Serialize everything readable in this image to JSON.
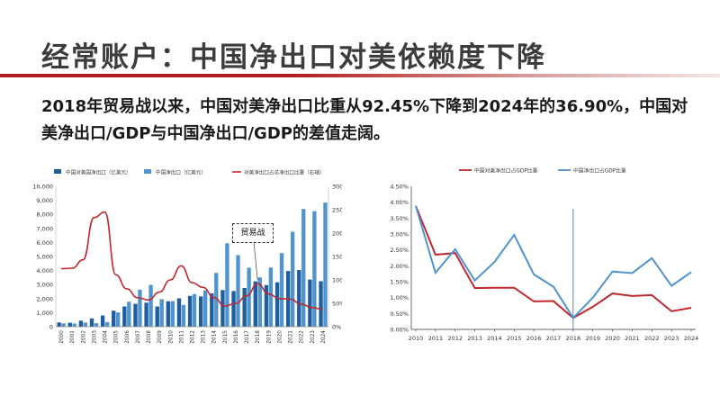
{
  "title": "经常账户：中国净出口对美依赖度下降",
  "subtitle": "2018年贸易战以来，中国对美净出口比重从92.45%下降到2024年的36.90%，中国对美净出口/GDP与中国净出口/GDP的差值走阔。",
  "colors": {
    "dark_blue": "#1f5d9e",
    "light_blue": "#4f93cf",
    "red": "#c1272d",
    "accent": "#b11b1b"
  },
  "chart_data": [
    {
      "type": "bar",
      "categories": [
        "2000",
        "2001",
        "2002",
        "2003",
        "2004",
        "2005",
        "2006",
        "2007",
        "2008",
        "2009",
        "2010",
        "2011",
        "2012",
        "2013",
        "2014",
        "2015",
        "2016",
        "2017",
        "2018",
        "2019",
        "2020",
        "2021",
        "2022",
        "2023",
        "2024"
      ],
      "series": [
        {
          "name": "中国对美国净出口（亿美元）",
          "type": "bar",
          "axis": "left",
          "values": [
            300,
            280,
            430,
            590,
            800,
            1140,
            1440,
            1630,
            1710,
            1440,
            1810,
            2020,
            2190,
            2160,
            2370,
            2610,
            2540,
            2760,
            3230,
            2960,
            3160,
            3970,
            4040,
            3360,
            3240
          ]
        },
        {
          "name": "中国净出口（亿美元）",
          "type": "bar",
          "axis": "left",
          "values": [
            240,
            230,
            300,
            250,
            330,
            1020,
            1780,
            2640,
            2980,
            1960,
            1820,
            1550,
            2320,
            2590,
            3830,
            5940,
            5100,
            4200,
            3510,
            4210,
            5240,
            6760,
            8380,
            8230,
            8840
          ]
        },
        {
          "name": "对美净出口占总净出口比重（右轴）",
          "type": "line",
          "axis": "right",
          "values": [
            124,
            125,
            143,
            233,
            245,
            111,
            81,
            62,
            57,
            74,
            100,
            130,
            94,
            84,
            62,
            44,
            50,
            66,
            92,
            70,
            60,
            59,
            48,
            41,
            37
          ]
        }
      ],
      "ylim_left": [
        0,
        10000
      ],
      "yticks_left": [
        "0",
        "1,000",
        "2,000",
        "3,000",
        "4,000",
        "5,000",
        "6,000",
        "7,000",
        "8,000",
        "9,000",
        "10,000"
      ],
      "ylim_right": [
        0,
        300
      ],
      "yticks_right": [
        "0%",
        "50%",
        "100%",
        "150%",
        "200%",
        "250%",
        "300%"
      ],
      "annotation": "贸易战"
    },
    {
      "type": "line",
      "categories": [
        "2010",
        "2011",
        "2012",
        "2013",
        "2014",
        "2015",
        "2016",
        "2017",
        "2018",
        "2019",
        "2020",
        "2021",
        "2022",
        "2023",
        "2024"
      ],
      "series": [
        {
          "name": "中国对美净出口占GDP比重",
          "values": [
            3.88,
            2.35,
            2.4,
            1.3,
            1.31,
            1.31,
            0.88,
            0.89,
            0.36,
            0.71,
            1.13,
            1.05,
            1.08,
            0.57,
            0.68
          ]
        },
        {
          "name": "中国净出口占GDP比重",
          "values": [
            3.88,
            1.78,
            2.52,
            1.54,
            2.12,
            2.97,
            1.73,
            1.34,
            0.36,
            1.0,
            1.82,
            1.77,
            2.24,
            1.37,
            1.8
          ]
        }
      ],
      "ylim": [
        0,
        4.5
      ],
      "yticks": [
        "0.00%",
        "0.50%",
        "1.00%",
        "1.50%",
        "2.00%",
        "2.50%",
        "3.00%",
        "3.50%",
        "4.00%",
        "4.50%"
      ],
      "marker_year": "2018"
    }
  ]
}
